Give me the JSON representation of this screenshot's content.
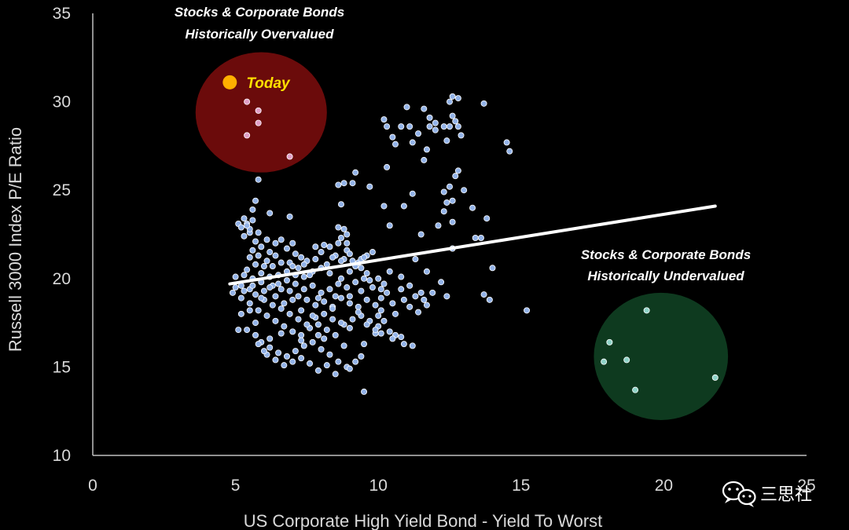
{
  "chart_data": {
    "type": "scatter",
    "title": "",
    "xlabel": "US Corporate High Yield Bond - Yield To Worst",
    "ylabel": "Russell 3000 Index P/E Ratio",
    "xlim": [
      0,
      25
    ],
    "ylim": [
      10,
      35
    ],
    "x_ticks": [
      0,
      5,
      10,
      15,
      20,
      25
    ],
    "y_ticks": [
      10,
      15,
      20,
      25,
      30,
      35
    ],
    "x_tick_labels": [
      "0",
      "5",
      "10",
      "15",
      "20",
      "25"
    ],
    "y_tick_labels": [
      "10",
      "15",
      "20",
      "25",
      "30",
      "35"
    ],
    "grid": false,
    "trendline": {
      "x1": 4.8,
      "y1": 19.7,
      "x2": 21.8,
      "y2": 24.1
    },
    "today_point": {
      "x": 4.8,
      "y": 31.1,
      "label": "Today"
    },
    "zones": [
      {
        "kind": "overvalued",
        "cx": 5.9,
        "cy": 29.4,
        "rx": 2.3,
        "ry": 3.4,
        "color": "#6b0b0b",
        "label_lines": [
          "Stocks & Corporate Bonds",
          "Historically Overvalued"
        ],
        "points": [
          [
            5.4,
            30.0
          ],
          [
            5.8,
            29.5
          ],
          [
            5.8,
            28.8
          ],
          [
            5.4,
            28.1
          ],
          [
            6.9,
            26.9
          ]
        ]
      },
      {
        "kind": "undervalued",
        "cx": 19.9,
        "cy": 15.6,
        "rx": 2.35,
        "ry": 3.6,
        "color": "#0e3a1f",
        "label_lines": [
          "Stocks & Corporate Bonds",
          "Historically Undervalued"
        ],
        "points": [
          [
            19.4,
            18.2
          ],
          [
            18.1,
            16.4
          ],
          [
            18.7,
            15.4
          ],
          [
            17.9,
            15.3
          ],
          [
            21.8,
            14.4
          ],
          [
            19.0,
            13.7
          ]
        ]
      }
    ],
    "series": [
      {
        "name": "Historical observations",
        "points": [
          [
            10.2,
            29.0
          ],
          [
            10.3,
            28.6
          ],
          [
            11.0,
            29.7
          ],
          [
            11.6,
            29.6
          ],
          [
            12.6,
            30.3
          ],
          [
            12.8,
            30.2
          ],
          [
            12.5,
            30.0
          ],
          [
            13.7,
            29.9
          ],
          [
            10.5,
            28.0
          ],
          [
            10.6,
            27.6
          ],
          [
            10.8,
            28.6
          ],
          [
            11.1,
            28.6
          ],
          [
            11.4,
            28.2
          ],
          [
            11.2,
            27.7
          ],
          [
            11.8,
            28.6
          ],
          [
            12.0,
            28.4
          ],
          [
            12.3,
            28.6
          ],
          [
            12.5,
            28.6
          ],
          [
            12.8,
            28.6
          ],
          [
            12.6,
            29.2
          ],
          [
            12.7,
            28.9
          ],
          [
            11.8,
            29.1
          ],
          [
            12.0,
            28.8
          ],
          [
            11.7,
            27.3
          ],
          [
            11.6,
            26.7
          ],
          [
            12.4,
            27.8
          ],
          [
            12.9,
            28.1
          ],
          [
            14.5,
            27.7
          ],
          [
            14.6,
            27.2
          ],
          [
            10.3,
            26.3
          ],
          [
            11.2,
            24.8
          ],
          [
            12.3,
            24.9
          ],
          [
            12.5,
            25.2
          ],
          [
            12.7,
            25.8
          ],
          [
            12.8,
            26.1
          ],
          [
            13.0,
            25.0
          ],
          [
            12.4,
            24.3
          ],
          [
            12.6,
            24.4
          ],
          [
            12.3,
            23.8
          ],
          [
            13.3,
            24.0
          ],
          [
            13.8,
            23.4
          ],
          [
            12.6,
            23.2
          ],
          [
            12.1,
            23.0
          ],
          [
            10.9,
            24.1
          ],
          [
            10.4,
            23.0
          ],
          [
            10.2,
            24.1
          ],
          [
            9.7,
            25.2
          ],
          [
            9.2,
            26.0
          ],
          [
            9.1,
            25.4
          ],
          [
            8.8,
            25.4
          ],
          [
            8.6,
            25.3
          ],
          [
            8.7,
            24.2
          ],
          [
            8.8,
            22.8
          ],
          [
            8.6,
            22.9
          ],
          [
            8.9,
            22.5
          ],
          [
            11.5,
            22.5
          ],
          [
            13.4,
            22.3
          ],
          [
            13.6,
            22.3
          ],
          [
            14.0,
            20.6
          ],
          [
            12.6,
            21.7
          ],
          [
            11.3,
            21.1
          ],
          [
            11.7,
            20.4
          ],
          [
            12.2,
            19.8
          ],
          [
            12.4,
            19.0
          ],
          [
            13.7,
            19.1
          ],
          [
            13.9,
            18.8
          ],
          [
            15.2,
            18.2
          ],
          [
            11.6,
            18.8
          ],
          [
            11.3,
            19.0
          ],
          [
            11.7,
            18.5
          ],
          [
            11.4,
            18.1
          ],
          [
            11.1,
            18.4
          ],
          [
            10.9,
            18.8
          ],
          [
            10.6,
            16.8
          ],
          [
            10.8,
            16.7
          ],
          [
            10.9,
            16.3
          ],
          [
            11.2,
            16.2
          ],
          [
            10.5,
            16.6
          ],
          [
            9.5,
            13.6
          ],
          [
            9.4,
            15.6
          ],
          [
            5.8,
            25.6
          ],
          [
            5.7,
            24.4
          ],
          [
            5.6,
            23.9
          ],
          [
            6.2,
            23.7
          ],
          [
            6.9,
            23.5
          ],
          [
            5.3,
            23.4
          ],
          [
            5.4,
            23.1
          ],
          [
            5.5,
            22.6
          ],
          [
            5.1,
            23.1
          ],
          [
            5.8,
            22.6
          ],
          [
            6.1,
            22.2
          ],
          [
            6.4,
            22.0
          ],
          [
            6.6,
            22.2
          ],
          [
            6.2,
            21.5
          ],
          [
            6.4,
            21.3
          ],
          [
            6.8,
            21.7
          ],
          [
            7.0,
            22.0
          ],
          [
            7.1,
            21.4
          ],
          [
            7.3,
            21.2
          ],
          [
            7.5,
            21.0
          ],
          [
            7.8,
            21.8
          ],
          [
            8.1,
            21.9
          ],
          [
            8.3,
            21.8
          ],
          [
            8.5,
            21.3
          ],
          [
            8.9,
            21.6
          ],
          [
            9.1,
            21.0
          ],
          [
            9.3,
            20.9
          ],
          [
            9.6,
            21.3
          ],
          [
            9.4,
            20.6
          ],
          [
            9.0,
            20.4
          ],
          [
            8.7,
            20.0
          ],
          [
            8.3,
            20.3
          ],
          [
            8.0,
            20.6
          ],
          [
            7.7,
            20.4
          ],
          [
            7.4,
            20.1
          ],
          [
            7.1,
            20.2
          ],
          [
            6.8,
            20.4
          ],
          [
            6.5,
            20.2
          ],
          [
            6.2,
            20.1
          ],
          [
            5.9,
            20.3
          ],
          [
            5.6,
            20.0
          ],
          [
            5.3,
            20.2
          ],
          [
            5.0,
            20.1
          ],
          [
            5.2,
            19.6
          ],
          [
            5.5,
            19.4
          ],
          [
            5.7,
            19.1
          ],
          [
            6.0,
            19.3
          ],
          [
            6.3,
            19.6
          ],
          [
            6.6,
            19.4
          ],
          [
            6.9,
            19.3
          ],
          [
            7.2,
            19.0
          ],
          [
            7.5,
            18.8
          ],
          [
            7.8,
            18.5
          ],
          [
            8.1,
            18.7
          ],
          [
            8.4,
            18.4
          ],
          [
            8.7,
            18.9
          ],
          [
            9.0,
            18.6
          ],
          [
            9.3,
            18.4
          ],
          [
            9.6,
            18.8
          ],
          [
            9.9,
            18.5
          ],
          [
            10.1,
            18.9
          ],
          [
            9.8,
            19.5
          ],
          [
            10.0,
            20.0
          ],
          [
            9.7,
            19.9
          ],
          [
            9.5,
            20.0
          ],
          [
            9.2,
            19.8
          ],
          [
            8.9,
            19.5
          ],
          [
            8.6,
            19.7
          ],
          [
            8.3,
            19.4
          ],
          [
            8.0,
            19.2
          ],
          [
            7.7,
            19.6
          ],
          [
            7.4,
            19.4
          ],
          [
            7.1,
            19.7
          ],
          [
            6.8,
            19.9
          ],
          [
            6.5,
            19.7
          ],
          [
            6.2,
            19.5
          ],
          [
            5.9,
            19.8
          ],
          [
            5.6,
            19.6
          ],
          [
            5.3,
            19.3
          ],
          [
            5.0,
            19.5
          ],
          [
            4.9,
            19.2
          ],
          [
            5.2,
            18.9
          ],
          [
            5.5,
            18.6
          ],
          [
            5.8,
            18.2
          ],
          [
            6.1,
            17.9
          ],
          [
            6.4,
            17.6
          ],
          [
            6.7,
            17.3
          ],
          [
            7.0,
            17.0
          ],
          [
            7.3,
            16.8
          ],
          [
            7.6,
            17.2
          ],
          [
            7.9,
            17.4
          ],
          [
            8.2,
            17.1
          ],
          [
            8.5,
            16.8
          ],
          [
            8.8,
            17.4
          ],
          [
            9.1,
            17.7
          ],
          [
            9.4,
            17.9
          ],
          [
            9.7,
            17.6
          ],
          [
            10.0,
            17.3
          ],
          [
            9.9,
            16.9
          ],
          [
            10.2,
            17.6
          ],
          [
            6.0,
            18.8
          ],
          [
            6.3,
            18.5
          ],
          [
            6.6,
            18.3
          ],
          [
            6.9,
            18.0
          ],
          [
            7.2,
            17.7
          ],
          [
            7.5,
            17.4
          ],
          [
            7.8,
            17.8
          ],
          [
            8.1,
            18.0
          ],
          [
            8.4,
            17.7
          ],
          [
            8.7,
            17.5
          ],
          [
            9.0,
            17.2
          ],
          [
            5.7,
            17.5
          ],
          [
            5.4,
            17.1
          ],
          [
            5.1,
            17.1
          ],
          [
            5.7,
            16.8
          ],
          [
            5.9,
            16.4
          ],
          [
            6.2,
            16.1
          ],
          [
            6.5,
            15.8
          ],
          [
            6.8,
            15.6
          ],
          [
            7.1,
            15.9
          ],
          [
            7.4,
            16.2
          ],
          [
            7.7,
            16.4
          ],
          [
            8.0,
            16.0
          ],
          [
            8.3,
            15.7
          ],
          [
            8.6,
            15.3
          ],
          [
            8.9,
            15.0
          ],
          [
            9.2,
            15.3
          ],
          [
            8.5,
            14.6
          ],
          [
            8.2,
            15.1
          ],
          [
            7.9,
            14.8
          ],
          [
            7.6,
            15.2
          ],
          [
            7.3,
            15.5
          ],
          [
            7.0,
            15.3
          ],
          [
            6.7,
            15.1
          ],
          [
            6.4,
            15.4
          ],
          [
            6.1,
            15.7
          ],
          [
            5.8,
            16.3
          ],
          [
            6.0,
            15.9
          ],
          [
            9.0,
            14.9
          ],
          [
            10.3,
            19.2
          ],
          [
            10.1,
            18.2
          ],
          [
            10.0,
            17.9
          ],
          [
            9.9,
            17.1
          ],
          [
            10.1,
            16.9
          ],
          [
            6.9,
            20.9
          ],
          [
            7.2,
            20.6
          ],
          [
            7.6,
            20.2
          ],
          [
            8.2,
            20.8
          ],
          [
            6.1,
            21.0
          ],
          [
            5.8,
            21.3
          ],
          [
            5.6,
            21.6
          ],
          [
            5.9,
            21.8
          ],
          [
            8.0,
            21.5
          ],
          [
            8.8,
            21.1
          ],
          [
            9.4,
            19.3
          ],
          [
            9.0,
            19.0
          ],
          [
            8.5,
            19.0
          ],
          [
            7.9,
            18.9
          ],
          [
            7.3,
            18.2
          ],
          [
            6.7,
            18.6
          ],
          [
            6.4,
            19.0
          ],
          [
            5.9,
            18.9
          ],
          [
            5.5,
            18.2
          ],
          [
            5.2,
            18.0
          ],
          [
            7.0,
            18.8
          ],
          [
            7.7,
            17.9
          ],
          [
            8.4,
            18.3
          ],
          [
            9.3,
            18.1
          ],
          [
            9.6,
            17.4
          ],
          [
            8.1,
            16.6
          ],
          [
            7.3,
            16.5
          ],
          [
            6.6,
            16.9
          ],
          [
            6.2,
            16.6
          ],
          [
            7.9,
            16.8
          ],
          [
            8.8,
            16.2
          ],
          [
            9.5,
            16.3
          ],
          [
            10.4,
            17.0
          ],
          [
            10.6,
            18.0
          ],
          [
            10.5,
            18.6
          ],
          [
            10.8,
            19.4
          ],
          [
            10.2,
            19.7
          ],
          [
            9.6,
            20.3
          ],
          [
            9.2,
            20.7
          ],
          [
            8.7,
            21.0
          ],
          [
            8.4,
            21.2
          ],
          [
            7.8,
            21.1
          ],
          [
            7.4,
            20.8
          ],
          [
            7.0,
            20.7
          ],
          [
            6.6,
            20.9
          ],
          [
            6.3,
            20.7
          ],
          [
            6.0,
            20.7
          ],
          [
            5.7,
            20.8
          ],
          [
            5.4,
            20.5
          ],
          [
            5.5,
            21.2
          ],
          [
            5.7,
            22.1
          ],
          [
            5.5,
            22.8
          ],
          [
            5.3,
            22.4
          ],
          [
            5.6,
            23.3
          ],
          [
            5.2,
            22.9
          ],
          [
            5.4,
            23.0
          ],
          [
            8.6,
            22.0
          ],
          [
            8.7,
            22.3
          ],
          [
            8.9,
            22.0
          ],
          [
            9.0,
            21.4
          ],
          [
            9.4,
            21.1
          ],
          [
            9.8,
            21.5
          ],
          [
            9.5,
            21.2
          ],
          [
            10.1,
            19.4
          ],
          [
            10.4,
            20.4
          ],
          [
            10.8,
            20.1
          ],
          [
            11.1,
            19.6
          ],
          [
            11.5,
            19.2
          ],
          [
            11.9,
            19.2
          ]
        ]
      }
    ]
  },
  "watermark": {
    "text": "三思社",
    "icon": "wechat-icon"
  },
  "colors": {
    "point_fill": "#93b3e8",
    "point_stroke": "#ffffff",
    "today": "#ffb000",
    "today_label": "#ffe000",
    "trend": "#ffffff",
    "axis": "#bfbfbf",
    "background": "#000000"
  }
}
